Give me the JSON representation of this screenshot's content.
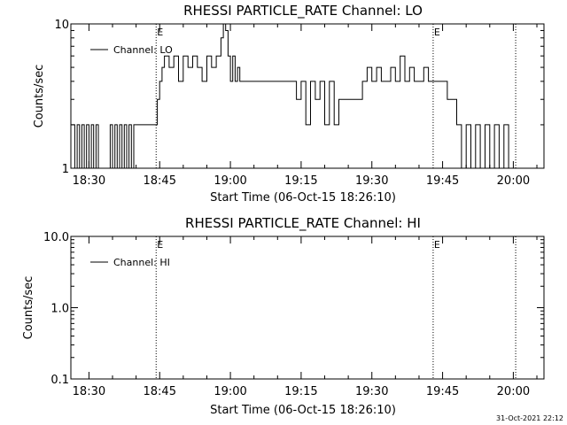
{
  "chart_data": [
    {
      "type": "line",
      "title": "RHESSI PARTICLE_RATE Channel: LO",
      "xlabel": "Start Time (06-Oct-15 18:26:10)",
      "ylabel": "Counts/sec",
      "yscale": "log",
      "ylim": [
        1,
        10
      ],
      "xlim": [
        "18:26:10",
        "20:06:30"
      ],
      "y_tick_labels": [
        "1",
        "10"
      ],
      "x_tick_labels": [
        "18:30",
        "18:45",
        "19:00",
        "19:15",
        "19:30",
        "19:45",
        "20:00"
      ],
      "legend": "top-left",
      "event_lines": [
        {
          "time": "18:44:15",
          "label": "E"
        },
        {
          "time": "19:43:00",
          "label": "E"
        },
        {
          "time": "20:00:30",
          "label": ""
        }
      ],
      "series": [
        {
          "name": "Channel: LO",
          "x": [
            "18:26:10",
            "18:27:00",
            "18:27:30",
            "18:28:00",
            "18:28:30",
            "18:29:00",
            "18:29:30",
            "18:30:00",
            "18:30:30",
            "18:31:00",
            "18:31:30",
            "18:32:00",
            "18:34:00",
            "18:34:30",
            "18:35:00",
            "18:35:30",
            "18:36:00",
            "18:36:30",
            "18:37:00",
            "18:37:30",
            "18:38:00",
            "18:38:30",
            "18:39:00",
            "18:39:30",
            "18:40:00",
            "18:42:00",
            "18:44:00",
            "18:44:30",
            "18:45:00",
            "18:45:30",
            "18:46:00",
            "18:47:00",
            "18:48:00",
            "18:49:00",
            "18:50:00",
            "18:51:00",
            "18:52:00",
            "18:53:00",
            "18:54:00",
            "18:55:00",
            "18:56:00",
            "18:57:00",
            "18:58:00",
            "18:58:30",
            "18:59:00",
            "18:59:30",
            "19:00:00",
            "19:00:30",
            "19:01:00",
            "19:01:30",
            "19:02:00",
            "19:03:00",
            "19:04:00",
            "19:05:00",
            "19:06:00",
            "19:07:00",
            "19:08:00",
            "19:09:00",
            "19:10:00",
            "19:11:00",
            "19:12:00",
            "19:13:00",
            "19:14:00",
            "19:15:00",
            "19:16:00",
            "19:17:00",
            "19:18:00",
            "19:19:00",
            "19:20:00",
            "19:21:00",
            "19:22:00",
            "19:23:00",
            "19:24:00",
            "19:25:00",
            "19:26:00",
            "19:27:00",
            "19:28:00",
            "19:29:00",
            "19:30:00",
            "19:31:00",
            "19:32:00",
            "19:33:00",
            "19:34:00",
            "19:35:00",
            "19:36:00",
            "19:37:00",
            "19:38:00",
            "19:39:00",
            "19:40:00",
            "19:41:00",
            "19:42:00",
            "19:43:00",
            "19:44:00",
            "19:45:00",
            "19:46:00",
            "19:47:00",
            "19:48:00",
            "19:49:00",
            "19:50:00",
            "19:51:00",
            "19:52:00",
            "19:53:00",
            "19:54:00",
            "19:55:00",
            "19:56:00",
            "19:57:00",
            "19:58:00",
            "19:59:00",
            "20:00:00",
            "20:01:00"
          ],
          "y": [
            2,
            1,
            2,
            1,
            2,
            1,
            2,
            1,
            2,
            1,
            2,
            1,
            1,
            2,
            1,
            2,
            1,
            2,
            1,
            2,
            1,
            2,
            1,
            2,
            2,
            2,
            2,
            3,
            4,
            5,
            6,
            5,
            6,
            4,
            6,
            5,
            6,
            5,
            4,
            6,
            5,
            6,
            8,
            10,
            9,
            6,
            4,
            6,
            4,
            5,
            4,
            4,
            4,
            4,
            4,
            4,
            4,
            4,
            4,
            4,
            4,
            4,
            3,
            4,
            2,
            4,
            3,
            4,
            2,
            4,
            2,
            3,
            3,
            3,
            3,
            3,
            4,
            5,
            4,
            5,
            4,
            4,
            5,
            4,
            6,
            4,
            5,
            4,
            4,
            5,
            4,
            4,
            4,
            4,
            3,
            3,
            2,
            1,
            2,
            1,
            2,
            1,
            2,
            1,
            2,
            1,
            2,
            1,
            1,
            1
          ]
        }
      ]
    },
    {
      "type": "line",
      "title": "RHESSI PARTICLE_RATE Channel: HI",
      "xlabel": "Start Time (06-Oct-15 18:26:10)",
      "ylabel": "Counts/sec",
      "yscale": "log",
      "ylim": [
        0.1,
        10
      ],
      "xlim": [
        "18:26:10",
        "20:06:30"
      ],
      "y_tick_labels": [
        "0.1",
        "1.0",
        "10.0"
      ],
      "x_tick_labels": [
        "18:30",
        "18:45",
        "19:00",
        "19:15",
        "19:30",
        "19:45",
        "20:00"
      ],
      "legend": "top-left",
      "event_lines": [
        {
          "time": "18:44:15",
          "label": "E"
        },
        {
          "time": "19:43:00",
          "label": "E"
        },
        {
          "time": "20:00:30",
          "label": ""
        }
      ],
      "series": [
        {
          "name": "Channel: HI",
          "x": [],
          "y": []
        }
      ]
    }
  ],
  "timestamp": "31-Oct-2021 22:12"
}
